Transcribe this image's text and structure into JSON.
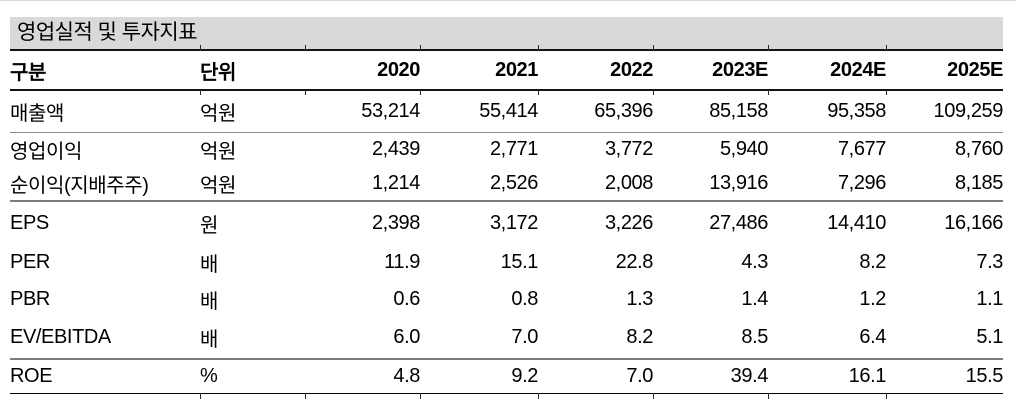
{
  "page": {
    "title": "영업실적 및 투자지표"
  },
  "table": {
    "columns": [
      "구분",
      "단위",
      "2020",
      "2021",
      "2022",
      "2023E",
      "2024E",
      "2025E"
    ],
    "rows": [
      {
        "label": "매출액",
        "unit": "억원",
        "values": [
          "53,214",
          "55,414",
          "65,396",
          "85,158",
          "95,358",
          "109,259"
        ]
      },
      {
        "label": "영업이익",
        "unit": "억원",
        "values": [
          "2,439",
          "2,771",
          "3,772",
          "5,940",
          "7,677",
          "8,760"
        ]
      },
      {
        "label": "순이익(지배주주)",
        "unit": "억원",
        "values": [
          "1,214",
          "2,526",
          "2,008",
          "13,916",
          "7,296",
          "8,185"
        ]
      },
      {
        "label": "EPS",
        "unit": "원",
        "values": [
          "2,398",
          "3,172",
          "3,226",
          "27,486",
          "14,410",
          "16,166"
        ]
      },
      {
        "label": "PER",
        "unit": "배",
        "values": [
          "11.9",
          "15.1",
          "22.8",
          "4.3",
          "8.2",
          "7.3"
        ]
      },
      {
        "label": "PBR",
        "unit": "배",
        "values": [
          "0.6",
          "0.8",
          "1.3",
          "1.4",
          "1.2",
          "1.1"
        ]
      },
      {
        "label": "EV/EBITDA",
        "unit": "배",
        "values": [
          "6.0",
          "7.0",
          "8.2",
          "8.5",
          "6.4",
          "5.1"
        ]
      },
      {
        "label": "ROE",
        "unit": "%",
        "values": [
          "4.8",
          "9.2",
          "7.0",
          "39.4",
          "16.1",
          "15.5"
        ]
      }
    ]
  },
  "colors": {
    "title_bar_bg": "#d9d9d9",
    "rule_black": "#141414",
    "rule_gray": "#7d7d7d",
    "rule_thin_gray": "#8c8c8c",
    "text": "#000000"
  }
}
